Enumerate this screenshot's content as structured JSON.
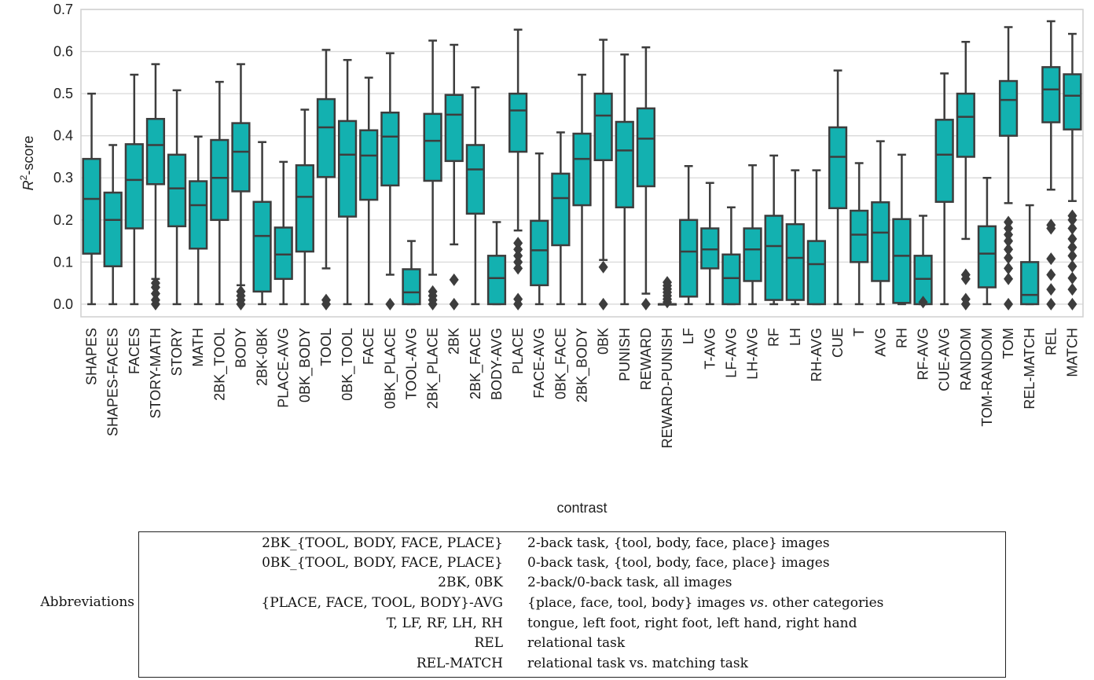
{
  "chart_data": {
    "type": "box",
    "xlabel": "contrast",
    "ylabel_base": "R",
    "ylabel_sup": "2",
    "ylabel_rest": "-score",
    "ylim": [
      -0.03,
      0.7
    ],
    "yticks": [
      0.0,
      0.1,
      0.2,
      0.3,
      0.4,
      0.5,
      0.6,
      0.7
    ],
    "ytick_labels": [
      "0.0",
      "0.1",
      "0.2",
      "0.3",
      "0.4",
      "0.5",
      "0.6",
      "0.7"
    ],
    "grid": "horizontal",
    "box_color": "#13b1b0",
    "edge_color": "#3d3d3d",
    "categories": [
      "SHAPES",
      "SHAPES-FACES",
      "FACES",
      "STORY-MATH",
      "STORY",
      "MATH",
      "2BK_TOOL",
      "BODY",
      "2BK-0BK",
      "PLACE-AVG",
      "0BK_BODY",
      "TOOL",
      "0BK_TOOL",
      "FACE",
      "0BK_PLACE",
      "TOOL-AVG",
      "2BK_PLACE",
      "2BK",
      "2BK_FACE",
      "BODY-AVG",
      "PLACE",
      "FACE-AVG",
      "0BK_FACE",
      "2BK_BODY",
      "0BK",
      "PUNISH",
      "REWARD",
      "REWARD-PUNISH",
      "LF",
      "T-AVG",
      "LF-AVG",
      "LH-AVG",
      "RF",
      "LH",
      "RH-AVG",
      "CUE",
      "T",
      "AVG",
      "RH",
      "RF-AVG",
      "CUE-AVG",
      "RANDOM",
      "TOM-RANDOM",
      "TOM",
      "REL-MATCH",
      "REL",
      "MATCH"
    ],
    "boxes": [
      {
        "whislo": 0.0,
        "q1": 0.12,
        "med": 0.25,
        "q3": 0.345,
        "whishi": 0.5,
        "fliers": []
      },
      {
        "whislo": 0.0,
        "q1": 0.09,
        "med": 0.2,
        "q3": 0.265,
        "whishi": 0.378,
        "fliers": []
      },
      {
        "whislo": 0.0,
        "q1": 0.18,
        "med": 0.295,
        "q3": 0.38,
        "whishi": 0.545,
        "fliers": []
      },
      {
        "whislo": 0.06,
        "q1": 0.285,
        "med": 0.378,
        "q3": 0.44,
        "whishi": 0.57,
        "fliers": [
          0.0,
          0.01,
          0.025,
          0.04,
          0.05
        ]
      },
      {
        "whislo": 0.0,
        "q1": 0.185,
        "med": 0.275,
        "q3": 0.355,
        "whishi": 0.508,
        "fliers": []
      },
      {
        "whislo": 0.0,
        "q1": 0.132,
        "med": 0.235,
        "q3": 0.292,
        "whishi": 0.398,
        "fliers": []
      },
      {
        "whislo": 0.0,
        "q1": 0.2,
        "med": 0.3,
        "q3": 0.39,
        "whishi": 0.528,
        "fliers": []
      },
      {
        "whislo": 0.045,
        "q1": 0.268,
        "med": 0.362,
        "q3": 0.43,
        "whishi": 0.57,
        "fliers": [
          0.0,
          0.01,
          0.02,
          0.03
        ]
      },
      {
        "whislo": 0.0,
        "q1": 0.03,
        "med": 0.162,
        "q3": 0.243,
        "whishi": 0.385,
        "fliers": []
      },
      {
        "whislo": 0.0,
        "q1": 0.06,
        "med": 0.118,
        "q3": 0.182,
        "whishi": 0.338,
        "fliers": []
      },
      {
        "whislo": 0.0,
        "q1": 0.125,
        "med": 0.255,
        "q3": 0.33,
        "whishi": 0.462,
        "fliers": []
      },
      {
        "whislo": 0.085,
        "q1": 0.302,
        "med": 0.42,
        "q3": 0.487,
        "whishi": 0.604,
        "fliers": [
          0.0,
          0.01
        ]
      },
      {
        "whislo": 0.0,
        "q1": 0.208,
        "med": 0.355,
        "q3": 0.435,
        "whishi": 0.58,
        "fliers": []
      },
      {
        "whislo": 0.0,
        "q1": 0.248,
        "med": 0.353,
        "q3": 0.413,
        "whishi": 0.538,
        "fliers": []
      },
      {
        "whislo": 0.07,
        "q1": 0.282,
        "med": 0.398,
        "q3": 0.455,
        "whishi": 0.596,
        "fliers": [
          0.0
        ]
      },
      {
        "whislo": 0.0,
        "q1": 0.0,
        "med": 0.028,
        "q3": 0.083,
        "whishi": 0.15,
        "fliers": []
      },
      {
        "whislo": 0.07,
        "q1": 0.293,
        "med": 0.388,
        "q3": 0.452,
        "whishi": 0.626,
        "fliers": [
          0.0,
          0.01,
          0.02,
          0.03
        ]
      },
      {
        "whislo": 0.142,
        "q1": 0.34,
        "med": 0.45,
        "q3": 0.497,
        "whishi": 0.616,
        "fliers": [
          0.0,
          0.058
        ]
      },
      {
        "whislo": 0.0,
        "q1": 0.215,
        "med": 0.32,
        "q3": 0.378,
        "whishi": 0.515,
        "fliers": []
      },
      {
        "whislo": 0.0,
        "q1": 0.0,
        "med": 0.062,
        "q3": 0.115,
        "whishi": 0.195,
        "fliers": []
      },
      {
        "whislo": 0.175,
        "q1": 0.362,
        "med": 0.46,
        "q3": 0.5,
        "whishi": 0.652,
        "fliers": [
          0.0,
          0.012,
          0.085,
          0.1,
          0.115,
          0.13,
          0.145
        ]
      },
      {
        "whislo": 0.0,
        "q1": 0.045,
        "med": 0.128,
        "q3": 0.198,
        "whishi": 0.358,
        "fliers": []
      },
      {
        "whislo": 0.0,
        "q1": 0.14,
        "med": 0.252,
        "q3": 0.31,
        "whishi": 0.408,
        "fliers": []
      },
      {
        "whislo": 0.0,
        "q1": 0.235,
        "med": 0.345,
        "q3": 0.405,
        "whishi": 0.545,
        "fliers": []
      },
      {
        "whislo": 0.105,
        "q1": 0.342,
        "med": 0.448,
        "q3": 0.5,
        "whishi": 0.628,
        "fliers": [
          0.0,
          0.088
        ]
      },
      {
        "whislo": 0.0,
        "q1": 0.23,
        "med": 0.365,
        "q3": 0.433,
        "whishi": 0.593,
        "fliers": []
      },
      {
        "whislo": 0.025,
        "q1": 0.28,
        "med": 0.393,
        "q3": 0.465,
        "whishi": 0.61,
        "fliers": [
          0.0
        ]
      },
      {
        "whislo": 0.0,
        "q1": 0.0,
        "med": 0.0,
        "q3": 0.0,
        "whishi": 0.0,
        "fliers": [
          0.005,
          0.012,
          0.02,
          0.028,
          0.036,
          0.044,
          0.052
        ]
      },
      {
        "whislo": 0.0,
        "q1": 0.018,
        "med": 0.125,
        "q3": 0.2,
        "whishi": 0.328,
        "fliers": []
      },
      {
        "whislo": 0.0,
        "q1": 0.085,
        "med": 0.13,
        "q3": 0.18,
        "whishi": 0.288,
        "fliers": []
      },
      {
        "whislo": 0.0,
        "q1": 0.0,
        "med": 0.062,
        "q3": 0.118,
        "whishi": 0.23,
        "fliers": []
      },
      {
        "whislo": 0.0,
        "q1": 0.055,
        "med": 0.13,
        "q3": 0.18,
        "whishi": 0.33,
        "fliers": []
      },
      {
        "whislo": 0.0,
        "q1": 0.01,
        "med": 0.138,
        "q3": 0.21,
        "whishi": 0.353,
        "fliers": []
      },
      {
        "whislo": 0.0,
        "q1": 0.01,
        "med": 0.11,
        "q3": 0.19,
        "whishi": 0.318,
        "fliers": []
      },
      {
        "whislo": 0.0,
        "q1": 0.0,
        "med": 0.095,
        "q3": 0.15,
        "whishi": 0.318,
        "fliers": []
      },
      {
        "whislo": 0.0,
        "q1": 0.228,
        "med": 0.35,
        "q3": 0.42,
        "whishi": 0.555,
        "fliers": []
      },
      {
        "whislo": 0.0,
        "q1": 0.1,
        "med": 0.165,
        "q3": 0.222,
        "whishi": 0.335,
        "fliers": []
      },
      {
        "whislo": 0.0,
        "q1": 0.055,
        "med": 0.17,
        "q3": 0.242,
        "whishi": 0.387,
        "fliers": []
      },
      {
        "whislo": 0.0,
        "q1": 0.003,
        "med": 0.115,
        "q3": 0.202,
        "whishi": 0.355,
        "fliers": []
      },
      {
        "whislo": 0.0,
        "q1": 0.0,
        "med": 0.06,
        "q3": 0.115,
        "whishi": 0.21,
        "fliers": [
          0.005
        ]
      },
      {
        "whislo": 0.0,
        "q1": 0.243,
        "med": 0.355,
        "q3": 0.438,
        "whishi": 0.548,
        "fliers": []
      },
      {
        "whislo": 0.155,
        "q1": 0.35,
        "med": 0.445,
        "q3": 0.5,
        "whishi": 0.623,
        "fliers": [
          0.0,
          0.012,
          0.06,
          0.07
        ]
      },
      {
        "whislo": 0.0,
        "q1": 0.04,
        "med": 0.12,
        "q3": 0.185,
        "whishi": 0.3,
        "fliers": []
      },
      {
        "whislo": 0.24,
        "q1": 0.4,
        "med": 0.485,
        "q3": 0.53,
        "whishi": 0.658,
        "fliers": [
          0.0,
          0.06,
          0.085,
          0.11,
          0.13,
          0.15,
          0.165,
          0.18,
          0.195
        ]
      },
      {
        "whislo": 0.0,
        "q1": 0.0,
        "med": 0.022,
        "q3": 0.1,
        "whishi": 0.235,
        "fliers": []
      },
      {
        "whislo": 0.272,
        "q1": 0.432,
        "med": 0.51,
        "q3": 0.563,
        "whishi": 0.672,
        "fliers": [
          0.0,
          0.035,
          0.07,
          0.108,
          0.18,
          0.188
        ]
      },
      {
        "whislo": 0.245,
        "q1": 0.415,
        "med": 0.495,
        "q3": 0.546,
        "whishi": 0.642,
        "fliers": [
          0.0,
          0.035,
          0.062,
          0.09,
          0.115,
          0.135,
          0.155,
          0.18,
          0.2,
          0.21
        ]
      }
    ]
  },
  "abbreviations": {
    "label": "Abbreviations",
    "rows": [
      {
        "key": "2BK_{TOOL, BODY, FACE, PLACE}",
        "value": "2-back task, {tool, body, face, place} images"
      },
      {
        "key": "0BK_{TOOL, BODY, FACE, PLACE}",
        "value": "0-back task, {tool, body, face, place} images"
      },
      {
        "key": "2BK, 0BK",
        "value": "2-back/0-back task, all images"
      },
      {
        "key": "{PLACE, FACE, TOOL, BODY}-AVG",
        "value_pre": "{place, face, tool, body} images ",
        "value_em": "vs.",
        "value_post": " other categories"
      },
      {
        "key": "T, LF, RF, LH, RH",
        "value": "tongue, left foot, right foot, left hand, right hand"
      },
      {
        "key": "REL",
        "value": "relational task"
      },
      {
        "key": "REL-MATCH",
        "value": "relational task vs. matching task"
      }
    ]
  }
}
